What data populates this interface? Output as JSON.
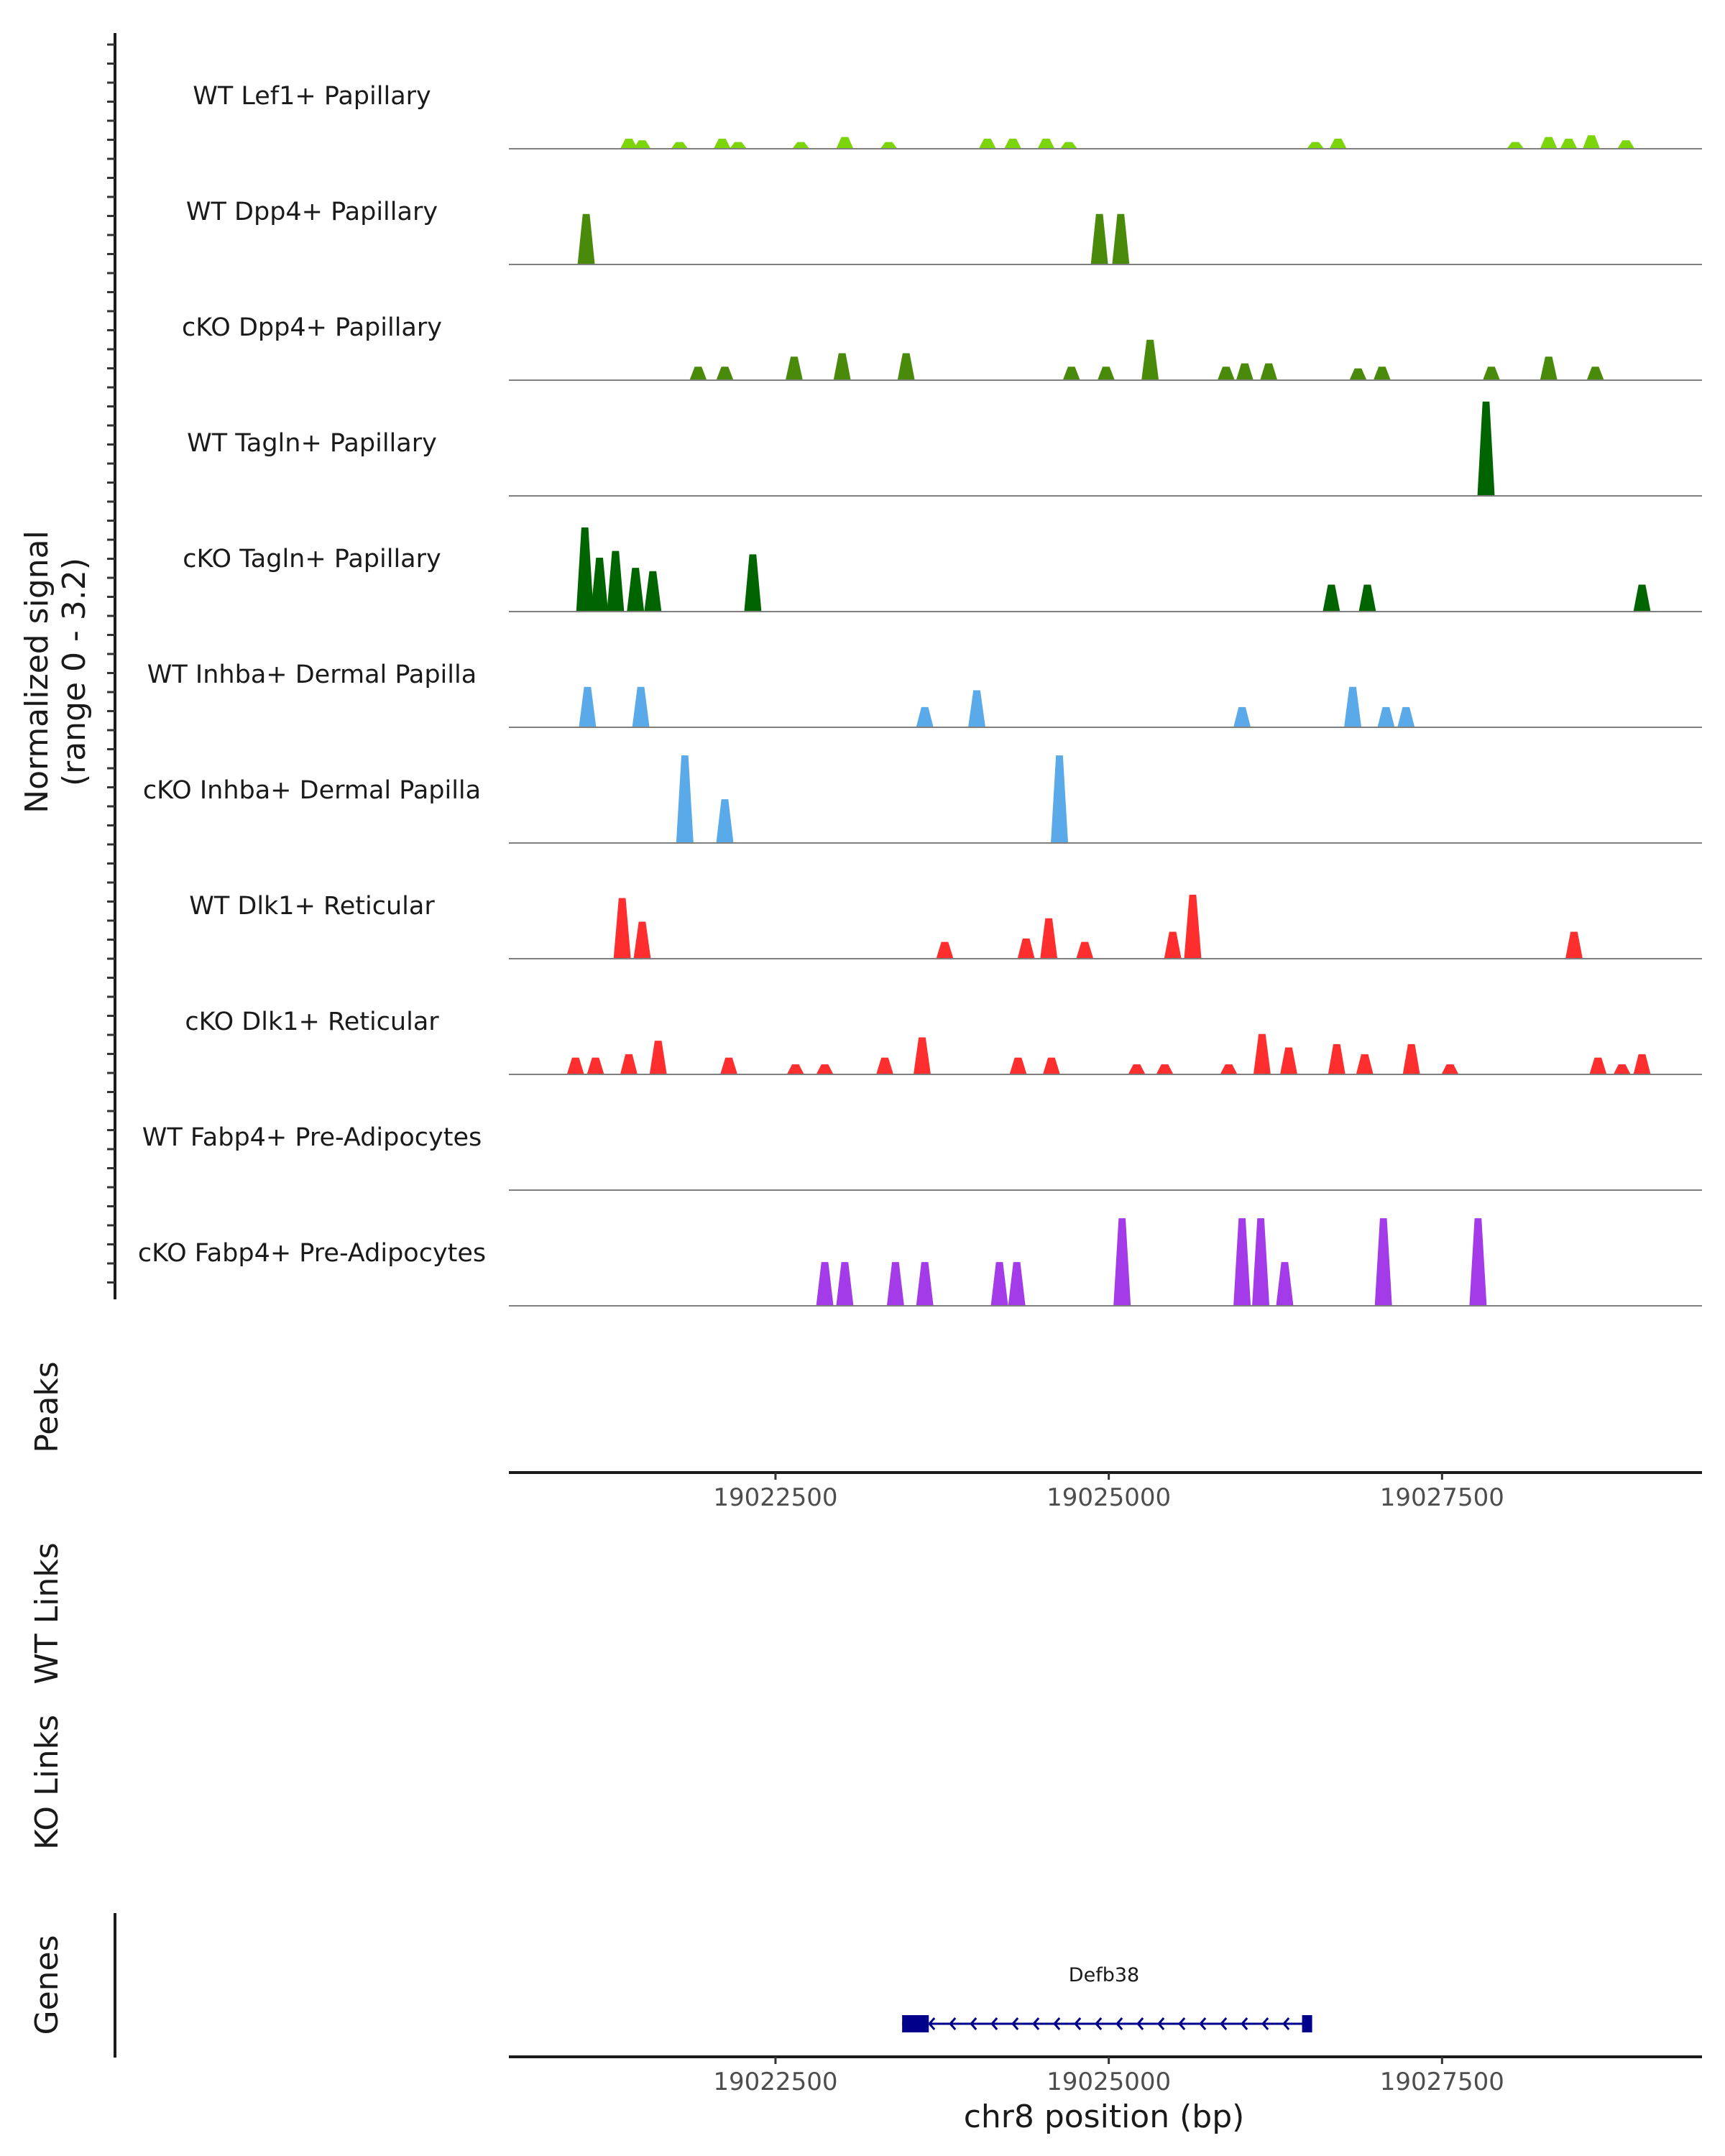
{
  "chart_data": {
    "type": "area",
    "title": "",
    "xlabel": "chr8 position (bp)",
    "ylabel": "Normalized signal\n(range 0 - 3.2)",
    "y_label_lines": [
      "Normalized signal",
      "(range 0 - 3.2)"
    ],
    "xlim": [
      19020500,
      19029450
    ],
    "ylim": [
      0,
      3.2
    ],
    "x_ticks": [
      19022500,
      19025000,
      19027500
    ],
    "x_tick_labels": [
      "19022500",
      "19025000",
      "19027500"
    ],
    "panel_labels": {
      "peaks": "Peaks",
      "wt_links": "WT Links",
      "ko_links": "KO Links",
      "genes": "Genes"
    },
    "gene": {
      "name": "Defb38",
      "start": 19023450,
      "end": 19026500,
      "strand": "-",
      "exons": [
        [
          19023450,
          19023650
        ],
        [
          19026450,
          19026500
        ]
      ],
      "color": "#00008b"
    },
    "series": [
      {
        "name": "WT Lef1+ Papillary",
        "color": "#7cd40a",
        "peaks": [
          [
            19021400,
            0.3
          ],
          [
            19021500,
            0.25
          ],
          [
            19021780,
            0.2
          ],
          [
            19022100,
            0.3
          ],
          [
            19022220,
            0.2
          ],
          [
            19022690,
            0.2
          ],
          [
            19023020,
            0.35
          ],
          [
            19023350,
            0.2
          ],
          [
            19024090,
            0.3
          ],
          [
            19024280,
            0.3
          ],
          [
            19024530,
            0.3
          ],
          [
            19024700,
            0.2
          ],
          [
            19026550,
            0.2
          ],
          [
            19026720,
            0.3
          ],
          [
            19028050,
            0.2
          ],
          [
            19028300,
            0.35
          ],
          [
            19028450,
            0.3
          ],
          [
            19028620,
            0.4
          ],
          [
            19028880,
            0.25
          ]
        ]
      },
      {
        "name": "WT Dpp4+ Papillary",
        "color": "#4a8a0a",
        "peaks": [
          [
            19021080,
            1.5
          ],
          [
            19024930,
            1.5
          ],
          [
            19025090,
            1.5
          ]
        ]
      },
      {
        "name": "cKO Dpp4+ Papillary",
        "color": "#4a8a0a",
        "peaks": [
          [
            19021920,
            0.4
          ],
          [
            19022120,
            0.4
          ],
          [
            19022640,
            0.7
          ],
          [
            19023000,
            0.8
          ],
          [
            19023480,
            0.8
          ],
          [
            19024720,
            0.4
          ],
          [
            19024980,
            0.4
          ],
          [
            19025310,
            1.2
          ],
          [
            19025880,
            0.4
          ],
          [
            19026020,
            0.5
          ],
          [
            19026200,
            0.5
          ],
          [
            19026870,
            0.35
          ],
          [
            19027050,
            0.4
          ],
          [
            19027870,
            0.4
          ],
          [
            19028300,
            0.7
          ],
          [
            19028650,
            0.4
          ]
        ]
      },
      {
        "name": "WT Tagln+ Papillary",
        "color": "#006400",
        "peaks": [
          [
            19027830,
            2.8
          ]
        ]
      },
      {
        "name": "cKO Tagln+ Papillary",
        "color": "#006400",
        "peaks": [
          [
            19021070,
            2.5
          ],
          [
            19021180,
            1.6
          ],
          [
            19021300,
            1.8
          ],
          [
            19021450,
            1.3
          ],
          [
            19021580,
            1.2
          ],
          [
            19022330,
            1.7
          ],
          [
            19026670,
            0.8
          ],
          [
            19026940,
            0.8
          ],
          [
            19029000,
            0.8
          ]
        ]
      },
      {
        "name": "WT Inhba+ Dermal Papilla",
        "color": "#5aa9e8",
        "peaks": [
          [
            19021090,
            1.2
          ],
          [
            19021490,
            1.2
          ],
          [
            19023620,
            0.6
          ],
          [
            19024010,
            1.1
          ],
          [
            19026000,
            0.6
          ],
          [
            19026830,
            1.2
          ],
          [
            19027080,
            0.6
          ],
          [
            19027230,
            0.6
          ]
        ]
      },
      {
        "name": "cKO Inhba+ Dermal Papilla",
        "color": "#5aa9e8",
        "peaks": [
          [
            19021820,
            2.6
          ],
          [
            19022120,
            1.3
          ],
          [
            19024630,
            2.6
          ]
        ]
      },
      {
        "name": "WT Dlk1+ Reticular",
        "color": "#ff2e2e",
        "peaks": [
          [
            19021350,
            1.8
          ],
          [
            19021500,
            1.1
          ],
          [
            19023770,
            0.5
          ],
          [
            19024380,
            0.6
          ],
          [
            19024550,
            1.2
          ],
          [
            19024820,
            0.5
          ],
          [
            19025480,
            0.8
          ],
          [
            19025630,
            1.9
          ],
          [
            19028490,
            0.8
          ]
        ]
      },
      {
        "name": "cKO Dlk1+ Reticular",
        "color": "#ff2e2e",
        "peaks": [
          [
            19021000,
            0.5
          ],
          [
            19021150,
            0.5
          ],
          [
            19021400,
            0.6
          ],
          [
            19021620,
            1.0
          ],
          [
            19022150,
            0.5
          ],
          [
            19022650,
            0.3
          ],
          [
            19022870,
            0.3
          ],
          [
            19023320,
            0.5
          ],
          [
            19023600,
            1.1
          ],
          [
            19024320,
            0.5
          ],
          [
            19024570,
            0.5
          ],
          [
            19025210,
            0.3
          ],
          [
            19025420,
            0.3
          ],
          [
            19025900,
            0.3
          ],
          [
            19026150,
            1.2
          ],
          [
            19026350,
            0.8
          ],
          [
            19026710,
            0.9
          ],
          [
            19026920,
            0.6
          ],
          [
            19027270,
            0.9
          ],
          [
            19027560,
            0.3
          ],
          [
            19028670,
            0.5
          ],
          [
            19028850,
            0.3
          ],
          [
            19029000,
            0.6
          ]
        ]
      },
      {
        "name": "WT Fabp4+ Pre-Adipocytes",
        "color": "#a43be8",
        "peaks": []
      },
      {
        "name": "cKO Fabp4+ Pre-Adipocytes",
        "color": "#a43be8",
        "peaks": [
          [
            19022870,
            1.3
          ],
          [
            19023020,
            1.3
          ],
          [
            19023400,
            1.3
          ],
          [
            19023620,
            1.3
          ],
          [
            19024180,
            1.3
          ],
          [
            19024310,
            1.3
          ],
          [
            19025100,
            2.6
          ],
          [
            19026000,
            2.6
          ],
          [
            19026140,
            2.6
          ],
          [
            19026320,
            1.3
          ],
          [
            19027060,
            2.6
          ],
          [
            19027770,
            2.6
          ]
        ]
      }
    ]
  }
}
